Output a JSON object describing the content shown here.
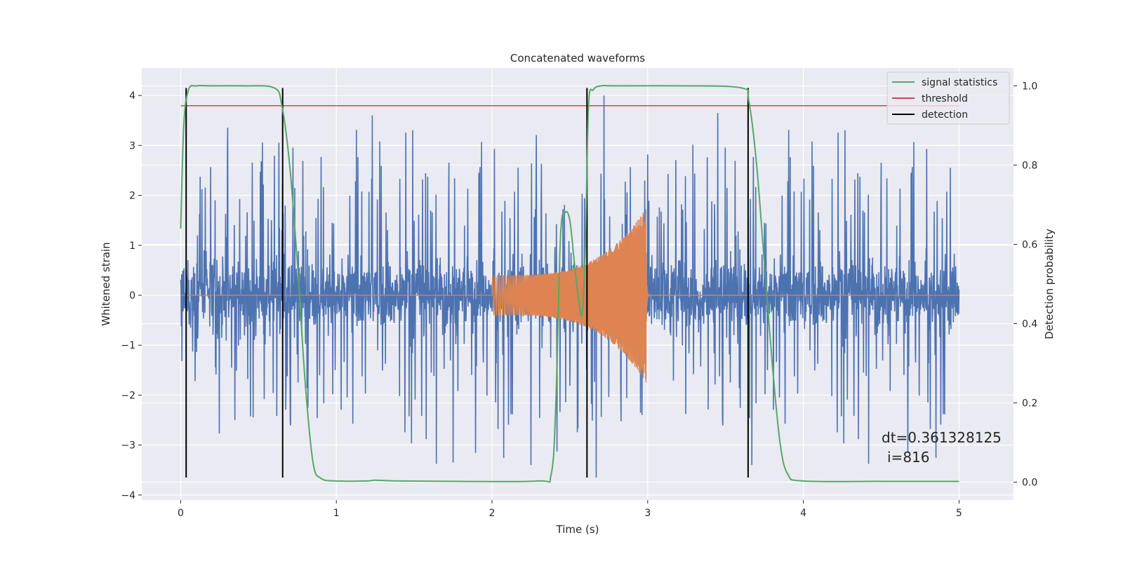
{
  "chart_data": {
    "type": "line",
    "title": "Concatenated waveforms",
    "xlabel": "Time (s)",
    "ylabel": "Whitened strain",
    "ylabel_right": "Detection probability",
    "xlim": [
      -0.25,
      5.35
    ],
    "ylim": [
      -4.1,
      4.55
    ],
    "ylim_right": [
      -0.045,
      1.045
    ],
    "x_ticks": [
      0,
      1,
      2,
      3,
      4,
      5
    ],
    "y_ticks": [
      -4,
      -3,
      -2,
      -1,
      0,
      1,
      2,
      3,
      4
    ],
    "y_ticks_right": [
      0.0,
      0.2,
      0.4,
      0.6,
      0.8,
      1.0
    ],
    "x_tick_labels": [
      "0",
      "1",
      "2",
      "3",
      "4",
      "5"
    ],
    "y_tick_labels": [
      "−4",
      "−3",
      "−2",
      "−1",
      "0",
      "1",
      "2",
      "3",
      "4"
    ],
    "y_tick_labels_right": [
      "0.0",
      "0.2",
      "0.4",
      "0.6",
      "0.8",
      "1.0"
    ],
    "grid": true,
    "legend_position": "top-right",
    "colors": {
      "strain": "#4c72b0",
      "template": "#dd8452",
      "signal_statistics": "#55a868",
      "threshold": "#c44e52",
      "detection": "#000000",
      "background": "#eaeaf2",
      "grid": "#ffffff"
    },
    "series": [
      {
        "name": "signal statistics",
        "axis": "right",
        "x": [
          0.0,
          0.02,
          0.05,
          0.1,
          0.2,
          0.4,
          0.6,
          0.65,
          0.7,
          0.75,
          0.8,
          0.85,
          0.9,
          1.0,
          1.2,
          1.25,
          1.4,
          1.8,
          2.3,
          2.38,
          2.41,
          2.44,
          2.47,
          2.5,
          2.53,
          2.56,
          2.58,
          2.6,
          2.62,
          2.65,
          2.7,
          2.8,
          3.2,
          3.6,
          3.65,
          3.7,
          3.75,
          3.8,
          3.85,
          3.9,
          4.0,
          4.5,
          5.0
        ],
        "y": [
          0.64,
          0.9,
          0.99,
          1.0,
          1.0,
          1.0,
          0.995,
          0.95,
          0.8,
          0.55,
          0.25,
          0.05,
          0.01,
          0.003,
          0.003,
          0.005,
          0.003,
          0.002,
          0.003,
          0.02,
          0.2,
          0.62,
          0.68,
          0.66,
          0.55,
          0.45,
          0.43,
          0.6,
          0.95,
          0.99,
          1.0,
          1.0,
          1.0,
          0.995,
          0.96,
          0.8,
          0.55,
          0.3,
          0.1,
          0.02,
          0.003,
          0.002,
          0.002
        ]
      },
      {
        "name": "threshold",
        "axis": "right",
        "x": [
          0.0,
          5.0
        ],
        "y": [
          0.95,
          0.95
        ]
      },
      {
        "name": "detection",
        "axis": "left",
        "x": [
          0.035,
          0.655,
          2.61,
          3.645
        ],
        "y_range": [
          -3.65,
          4.15
        ]
      }
    ],
    "strain_noise": {
      "x_range": [
        0.0,
        5.0
      ],
      "core_amplitude": [
        -0.5,
        1.0
      ],
      "spike_range": [
        -3.7,
        4.0
      ],
      "notable_peaks": [
        {
          "x": 1.23,
          "y": 3.6
        },
        {
          "x": 2.72,
          "y": 4.0
        },
        {
          "x": 3.45,
          "y": 3.65
        },
        {
          "x": 2.67,
          "y": -3.65
        },
        {
          "x": 1.75,
          "y": -3.35
        },
        {
          "x": 2.25,
          "y": -3.4
        },
        {
          "x": 3.67,
          "y": -3.4
        }
      ]
    },
    "template_chirp": {
      "x_start": 2.0,
      "x_end": 2.99,
      "start_amplitude": 0.4,
      "peak_amplitude": 1.75
    },
    "annotations": [
      "dt=0.361328125",
      "i=816"
    ]
  }
}
